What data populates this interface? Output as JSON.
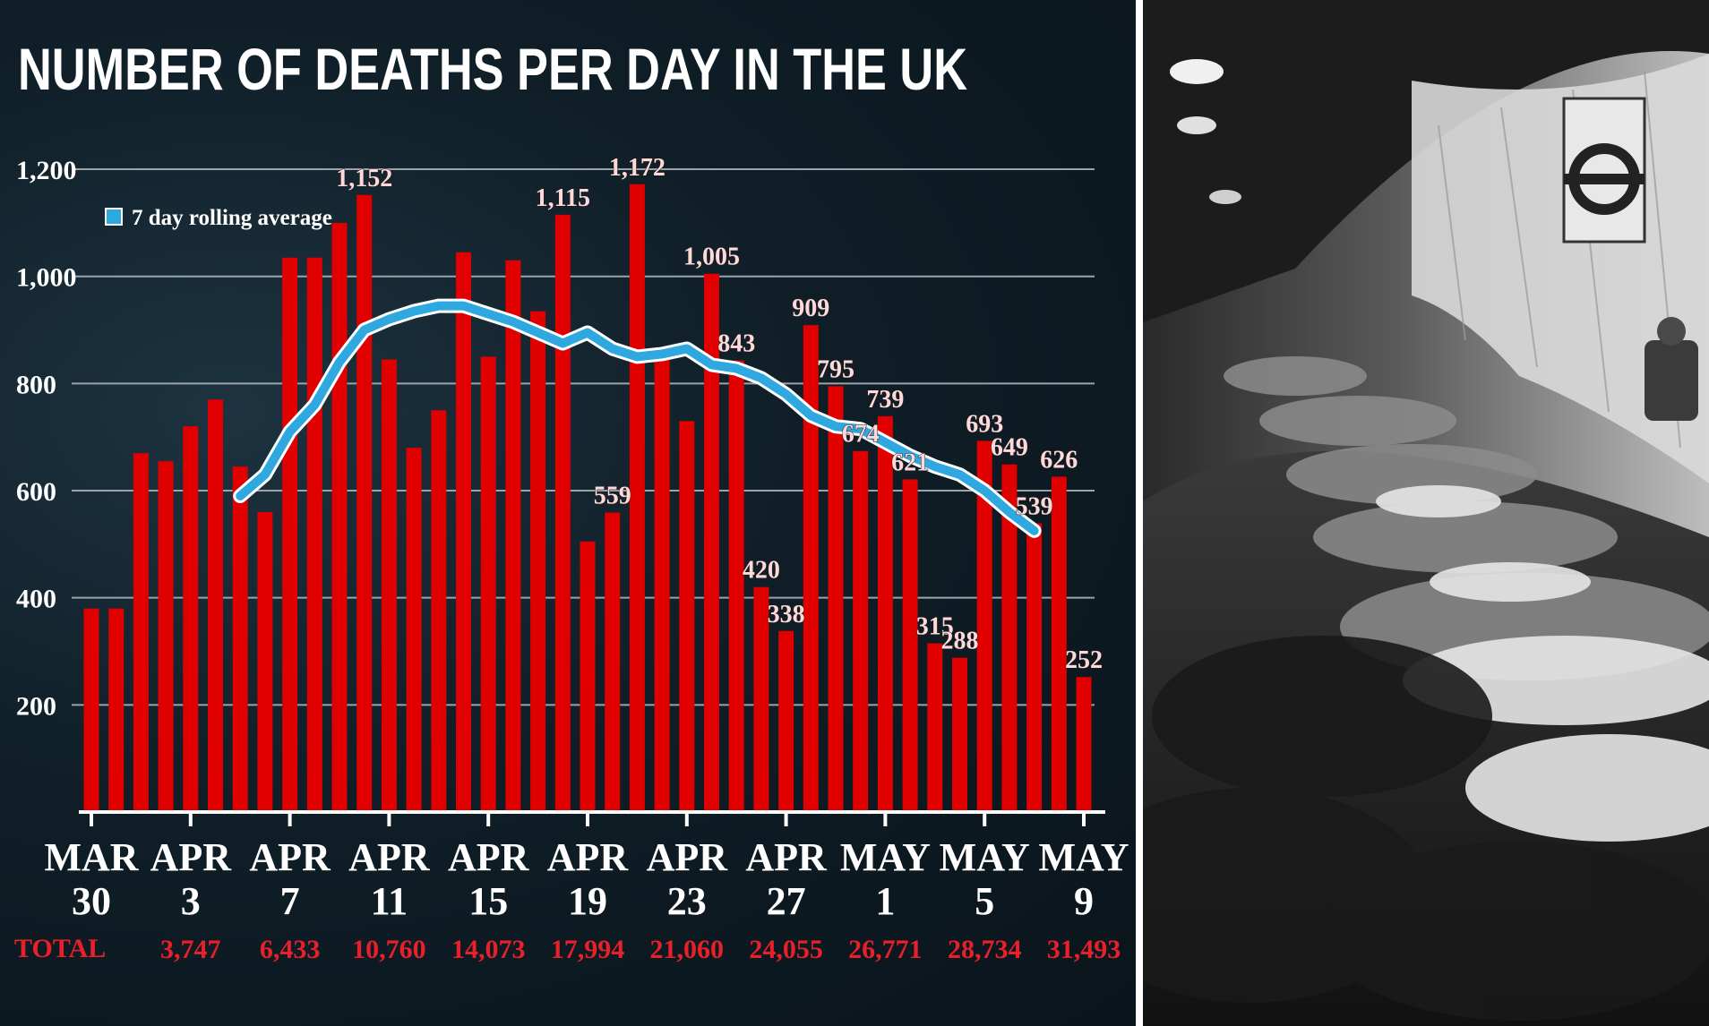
{
  "chart_data": {
    "type": "bar",
    "title": "NUMBER OF DEATHS PER DAY IN THE UK",
    "legend": {
      "label": "7 day rolling average",
      "placement": "top-left",
      "color": "#2fa8e0"
    },
    "bar_color": "#e00000",
    "line_color": "#2fa8e0",
    "grid": true,
    "ylim": [
      0,
      1200
    ],
    "yticks": [
      200,
      400,
      600,
      800,
      "1,000",
      "1,200"
    ],
    "ytick_values": [
      200,
      400,
      600,
      800,
      1000,
      1200
    ],
    "x_day_count": 41,
    "x_tick_labels": [
      {
        "day": 0,
        "top": "MAR",
        "bottom": "30"
      },
      {
        "day": 4,
        "top": "APR",
        "bottom": "3"
      },
      {
        "day": 8,
        "top": "APR",
        "bottom": "7"
      },
      {
        "day": 12,
        "top": "APR",
        "bottom": "11"
      },
      {
        "day": 16,
        "top": "APR",
        "bottom": "15"
      },
      {
        "day": 20,
        "top": "APR",
        "bottom": "19"
      },
      {
        "day": 24,
        "top": "APR",
        "bottom": "23"
      },
      {
        "day": 28,
        "top": "APR",
        "bottom": "27"
      },
      {
        "day": 32,
        "top": "MAY",
        "bottom": "1"
      },
      {
        "day": 36,
        "top": "MAY",
        "bottom": "5"
      },
      {
        "day": 40,
        "top": "MAY",
        "bottom": "9"
      }
    ],
    "values": [
      380,
      380,
      670,
      655,
      720,
      770,
      645,
      560,
      1035,
      1035,
      1100,
      1152,
      845,
      680,
      750,
      1045,
      850,
      1030,
      935,
      1115,
      505,
      559,
      1172,
      845,
      730,
      1005,
      843,
      420,
      338,
      909,
      795,
      674,
      739,
      621,
      315,
      288,
      693,
      649,
      539,
      626,
      252
    ],
    "data_labels": [
      {
        "day": 11,
        "text": "1,152"
      },
      {
        "day": 19,
        "text": "1,115"
      },
      {
        "day": 21,
        "text": "559"
      },
      {
        "day": 22,
        "text": "1,172"
      },
      {
        "day": 25,
        "text": "1,005"
      },
      {
        "day": 26,
        "text": "843"
      },
      {
        "day": 27,
        "text": "420"
      },
      {
        "day": 28,
        "text": "338"
      },
      {
        "day": 29,
        "text": "909"
      },
      {
        "day": 30,
        "text": "795"
      },
      {
        "day": 31,
        "text": "674"
      },
      {
        "day": 32,
        "text": "739"
      },
      {
        "day": 33,
        "text": "621"
      },
      {
        "day": 34,
        "text": "315"
      },
      {
        "day": 35,
        "text": "288"
      },
      {
        "day": 36,
        "text": "693"
      },
      {
        "day": 37,
        "text": "649"
      },
      {
        "day": 38,
        "text": "539"
      },
      {
        "day": 39,
        "text": "626"
      },
      {
        "day": 40,
        "text": "252"
      }
    ],
    "rolling_average": [
      {
        "day": 6,
        "value": 590
      },
      {
        "day": 7,
        "value": 630
      },
      {
        "day": 8,
        "value": 710
      },
      {
        "day": 9,
        "value": 760
      },
      {
        "day": 10,
        "value": 840
      },
      {
        "day": 11,
        "value": 900
      },
      {
        "day": 12,
        "value": 920
      },
      {
        "day": 13,
        "value": 935
      },
      {
        "day": 14,
        "value": 945
      },
      {
        "day": 15,
        "value": 945
      },
      {
        "day": 16,
        "value": 930
      },
      {
        "day": 17,
        "value": 915
      },
      {
        "day": 18,
        "value": 895
      },
      {
        "day": 19,
        "value": 875
      },
      {
        "day": 20,
        "value": 895
      },
      {
        "day": 21,
        "value": 865
      },
      {
        "day": 22,
        "value": 850
      },
      {
        "day": 23,
        "value": 855
      },
      {
        "day": 24,
        "value": 865
      },
      {
        "day": 25,
        "value": 835
      },
      {
        "day": 26,
        "value": 828
      },
      {
        "day": 27,
        "value": 810
      },
      {
        "day": 28,
        "value": 780
      },
      {
        "day": 29,
        "value": 740
      },
      {
        "day": 30,
        "value": 720
      },
      {
        "day": 31,
        "value": 715
      },
      {
        "day": 32,
        "value": 690
      },
      {
        "day": 33,
        "value": 665
      },
      {
        "day": 34,
        "value": 645
      },
      {
        "day": 35,
        "value": 630
      },
      {
        "day": 36,
        "value": 600
      },
      {
        "day": 37,
        "value": 560
      },
      {
        "day": 38,
        "value": 525
      }
    ],
    "totals_label": "TOTAL",
    "totals": [
      {
        "day": 4,
        "text": "3,747"
      },
      {
        "day": 8,
        "text": "6,433"
      },
      {
        "day": 12,
        "text": "10,760"
      },
      {
        "day": 16,
        "text": "14,073"
      },
      {
        "day": 20,
        "text": "17,994"
      },
      {
        "day": 24,
        "text": "21,060"
      },
      {
        "day": 28,
        "text": "24,055"
      },
      {
        "day": 32,
        "text": "26,771"
      },
      {
        "day": 36,
        "text": "28,734"
      },
      {
        "day": 40,
        "text": "31,493"
      }
    ],
    "totals_color": "#e8202a"
  },
  "photo": {
    "subject": "black-and-white photograph of people sheltering in an underground station tunnel",
    "icon": "photo-icon"
  }
}
